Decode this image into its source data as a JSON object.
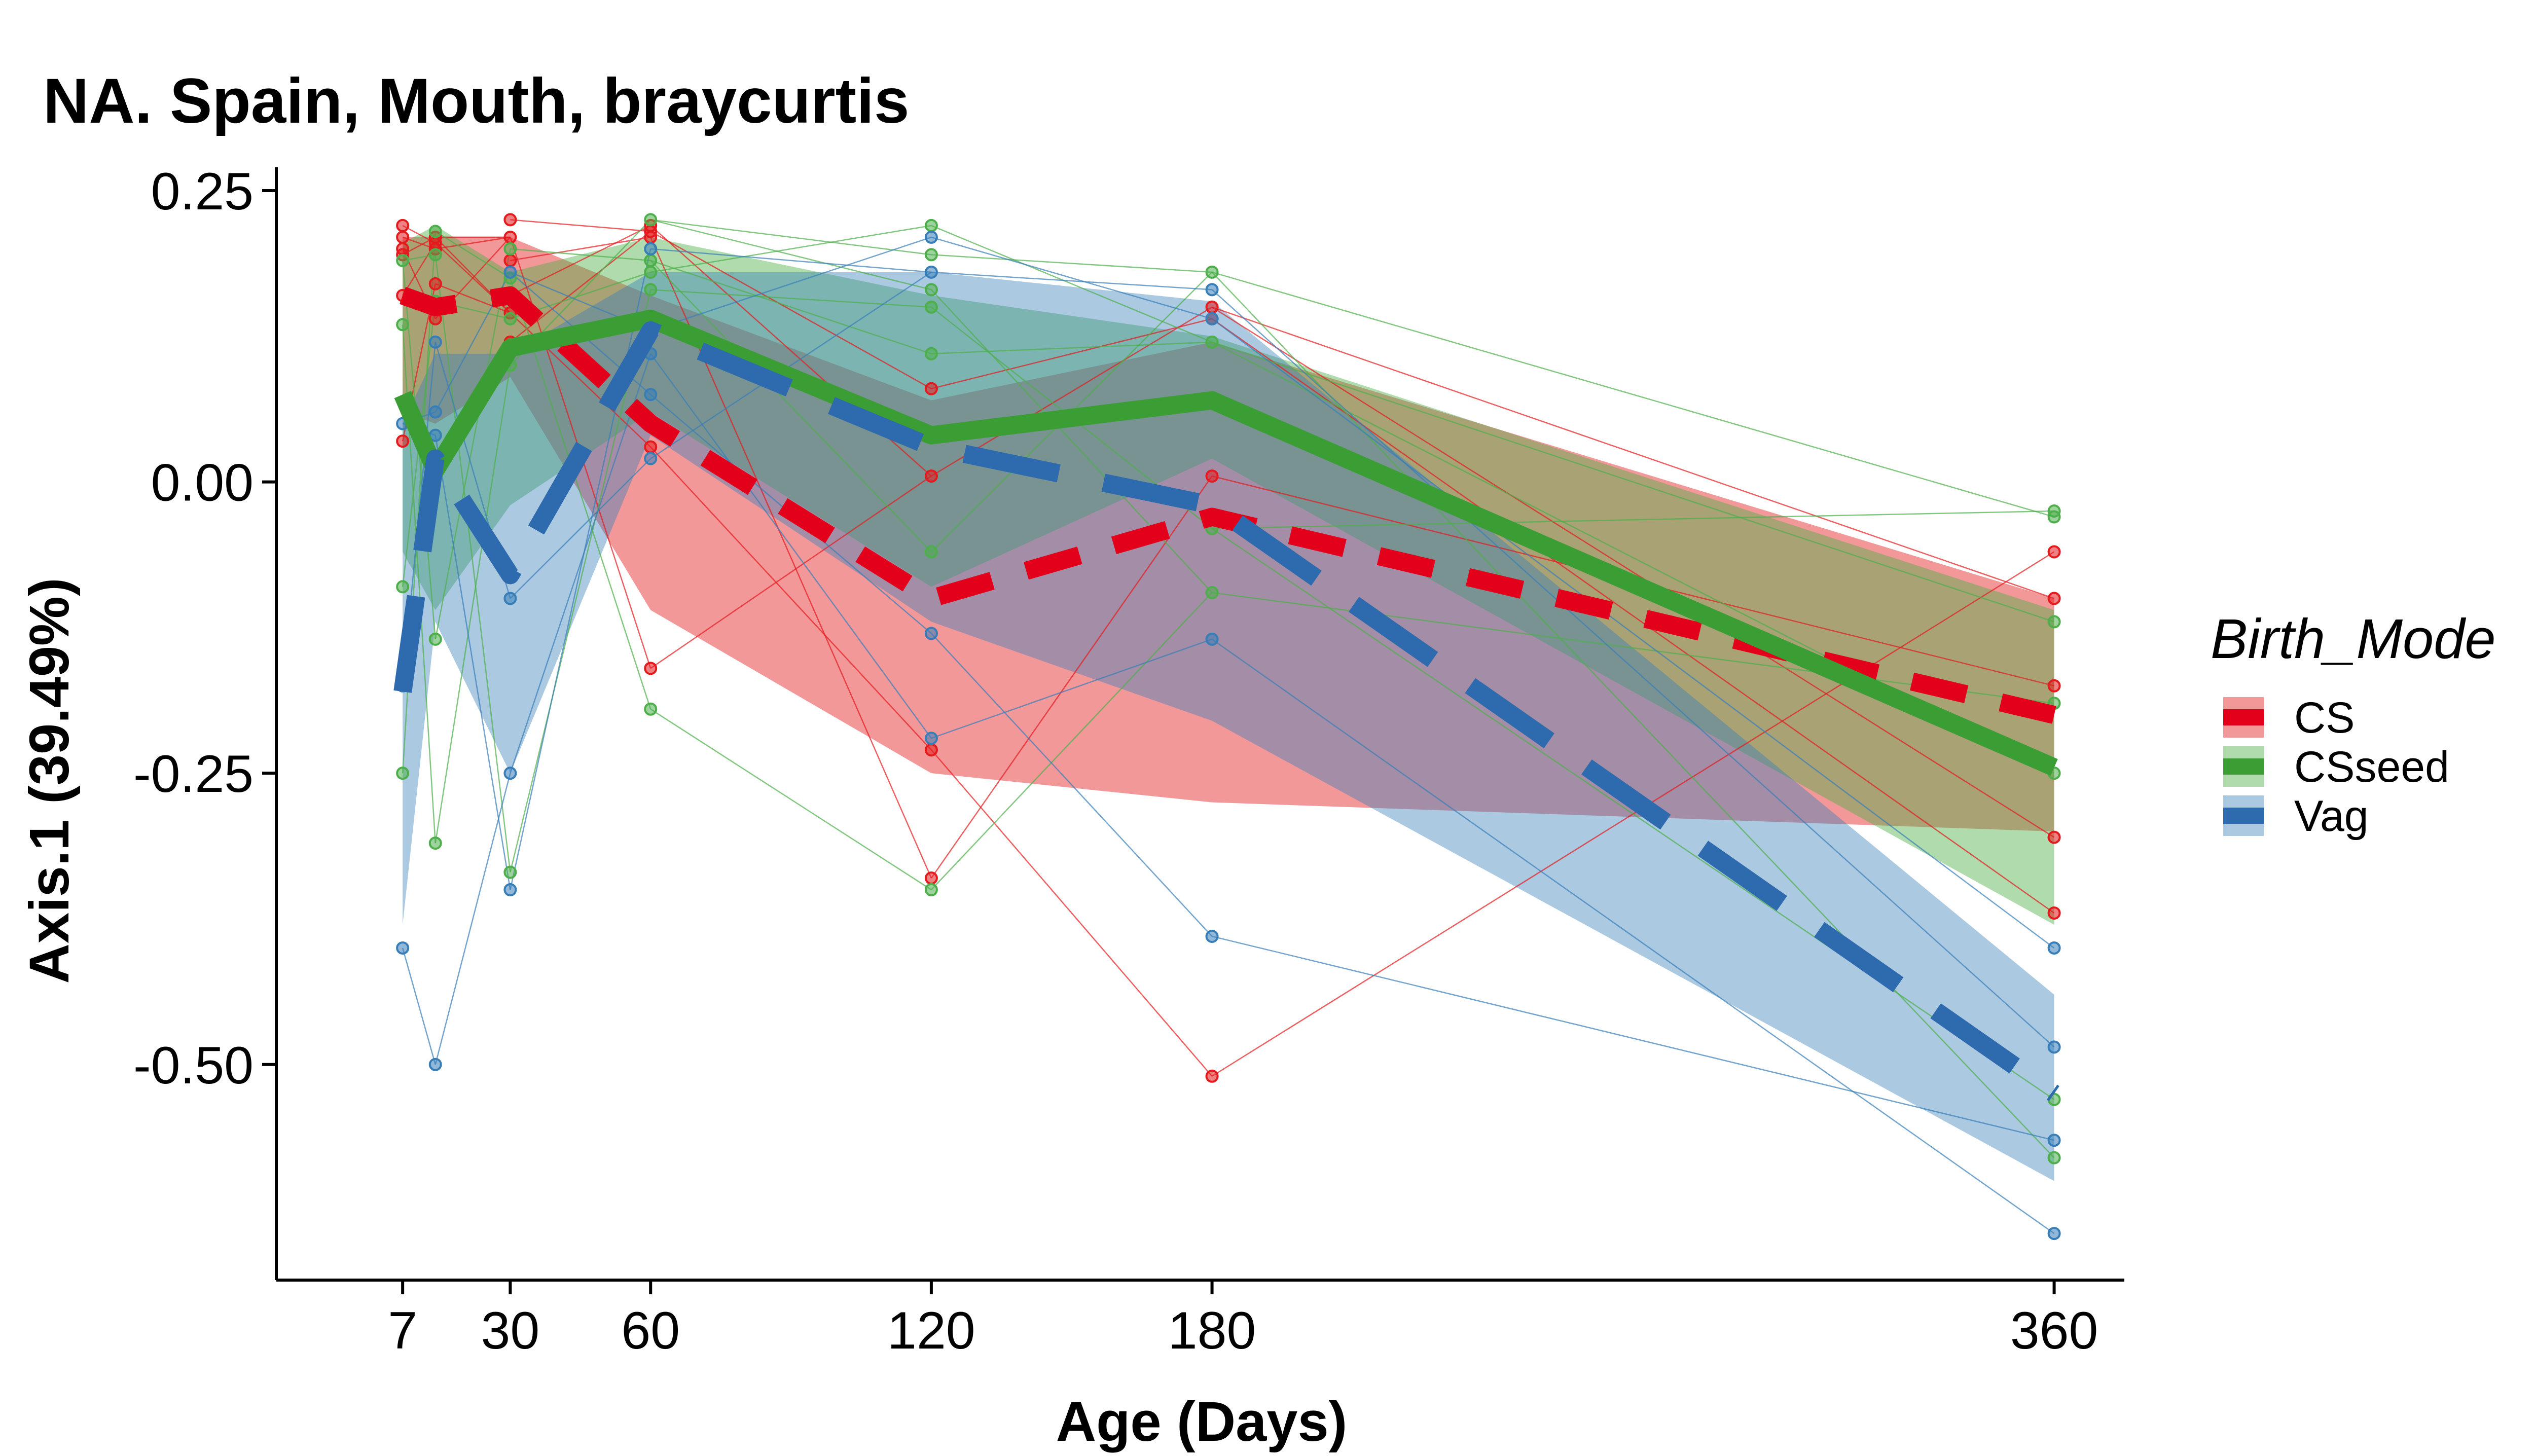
{
  "chart_data": {
    "type": "line",
    "title": "NA. Spain, Mouth, braycurtis",
    "xlabel": "Age (Days)",
    "ylabel": "Axis.1 (39.49%)",
    "xlim": [
      -20,
      375
    ],
    "ylim": [
      -0.685,
      0.27
    ],
    "x_ticks": [
      7,
      30,
      60,
      120,
      180,
      360
    ],
    "y_ticks": [
      0.25,
      0.0,
      -0.25,
      -0.5
    ],
    "y_tick_labels": [
      "0.25",
      "0.00",
      "-0.25",
      "-0.50"
    ],
    "grid": false,
    "legend": {
      "title": "Birth_Mode",
      "position": "right"
    },
    "series": [
      {
        "name": "CS",
        "color": "#E41A1C",
        "line_color": "#E3001B",
        "dash": "dashed",
        "ribbon_opacity": 0.45,
        "x": [
          7,
          14,
          30,
          60,
          120,
          180,
          360
        ],
        "mean": [
          0.16,
          0.15,
          0.16,
          0.05,
          -0.1,
          -0.03,
          -0.2
        ],
        "lower": [
          0.06,
          0.05,
          0.09,
          -0.11,
          -0.25,
          -0.275,
          -0.3
        ],
        "upper": [
          0.21,
          0.21,
          0.21,
          0.16,
          0.07,
          0.12,
          -0.1
        ],
        "points": [
          [
            7,
            0.22
          ],
          [
            7,
            0.2
          ],
          [
            7,
            0.21
          ],
          [
            7,
            0.195
          ],
          [
            7,
            0.035
          ],
          [
            7,
            0.16
          ],
          [
            14,
            0.21
          ],
          [
            14,
            0.205
          ],
          [
            14,
            0.2
          ],
          [
            14,
            0.17
          ],
          [
            14,
            0.14
          ],
          [
            30,
            0.225
          ],
          [
            30,
            0.21
          ],
          [
            30,
            0.19
          ],
          [
            30,
            0.16
          ],
          [
            30,
            0.145
          ],
          [
            30,
            0.12
          ],
          [
            60,
            0.22
          ],
          [
            60,
            0.215
          ],
          [
            60,
            0.21
          ],
          [
            60,
            0.03
          ],
          [
            60,
            -0.16
          ],
          [
            120,
            0.08
          ],
          [
            120,
            0.005
          ],
          [
            120,
            -0.23
          ],
          [
            120,
            -0.34
          ],
          [
            180,
            0.15
          ],
          [
            180,
            0.14
          ],
          [
            180,
            0.005
          ],
          [
            180,
            -0.51
          ],
          [
            360,
            -0.06
          ],
          [
            360,
            -0.1
          ],
          [
            360,
            -0.175
          ],
          [
            360,
            -0.305
          ],
          [
            360,
            -0.37
          ]
        ]
      },
      {
        "name": "CSseed",
        "color": "#4DAF4A",
        "line_color": "#3A9E34",
        "dash": "solid",
        "ribbon_opacity": 0.45,
        "x": [
          7,
          14,
          30,
          60,
          120,
          180,
          360
        ],
        "mean": [
          0.075,
          0.01,
          0.115,
          0.14,
          0.04,
          0.07,
          -0.245
        ],
        "lower": [
          -0.06,
          -0.11,
          -0.02,
          0.06,
          -0.09,
          0.02,
          -0.38
        ],
        "upper": [
          0.205,
          0.22,
          0.18,
          0.21,
          0.16,
          0.125,
          -0.11
        ],
        "points": [
          [
            7,
            0.19
          ],
          [
            7,
            0.135
          ],
          [
            7,
            -0.09
          ],
          [
            7,
            -0.25
          ],
          [
            14,
            0.215
          ],
          [
            14,
            0.195
          ],
          [
            14,
            0.155
          ],
          [
            14,
            -0.135
          ],
          [
            14,
            -0.31
          ],
          [
            30,
            0.2
          ],
          [
            30,
            0.175
          ],
          [
            30,
            0.14
          ],
          [
            30,
            0.1
          ],
          [
            30,
            -0.335
          ],
          [
            60,
            0.225
          ],
          [
            60,
            0.19
          ],
          [
            60,
            0.18
          ],
          [
            60,
            0.165
          ],
          [
            60,
            -0.195
          ],
          [
            120,
            0.22
          ],
          [
            120,
            0.195
          ],
          [
            120,
            0.165
          ],
          [
            120,
            0.15
          ],
          [
            120,
            0.11
          ],
          [
            120,
            -0.06
          ],
          [
            120,
            -0.35
          ],
          [
            180,
            0.18
          ],
          [
            180,
            0.12
          ],
          [
            180,
            -0.04
          ],
          [
            180,
            -0.095
          ],
          [
            360,
            -0.025
          ],
          [
            360,
            -0.03
          ],
          [
            360,
            -0.12
          ],
          [
            360,
            -0.19
          ],
          [
            360,
            -0.25
          ],
          [
            360,
            -0.53
          ],
          [
            360,
            -0.58
          ]
        ]
      },
      {
        "name": "Vag",
        "color": "#377EB8",
        "line_color": "#2D6AAE",
        "dash": "longdash",
        "ribbon_opacity": 0.42,
        "x": [
          7,
          14,
          30,
          60,
          120,
          180,
          360
        ],
        "mean": [
          -0.18,
          0.02,
          -0.08,
          0.13,
          0.03,
          -0.02,
          -0.525
        ],
        "lower": [
          -0.38,
          -0.12,
          -0.25,
          0.04,
          -0.12,
          -0.205,
          -0.6
        ],
        "upper": [
          0.05,
          0.11,
          0.11,
          0.18,
          0.18,
          0.155,
          -0.44
        ],
        "points": [
          [
            7,
            0.05
          ],
          [
            7,
            -0.175
          ],
          [
            7,
            -0.4
          ],
          [
            14,
            0.12
          ],
          [
            14,
            0.06
          ],
          [
            14,
            0.04
          ],
          [
            14,
            -0.5
          ],
          [
            30,
            0.18
          ],
          [
            30,
            -0.1
          ],
          [
            30,
            -0.25
          ],
          [
            30,
            -0.35
          ],
          [
            60,
            0.2
          ],
          [
            60,
            0.13
          ],
          [
            60,
            0.11
          ],
          [
            60,
            0.075
          ],
          [
            60,
            0.02
          ],
          [
            120,
            0.21
          ],
          [
            120,
            0.18
          ],
          [
            120,
            -0.13
          ],
          [
            120,
            -0.22
          ],
          [
            180,
            0.165
          ],
          [
            180,
            0.14
          ],
          [
            180,
            -0.135
          ],
          [
            180,
            -0.39
          ],
          [
            360,
            -0.4
          ],
          [
            360,
            -0.485
          ],
          [
            360,
            -0.565
          ],
          [
            360,
            -0.645
          ]
        ]
      }
    ]
  }
}
